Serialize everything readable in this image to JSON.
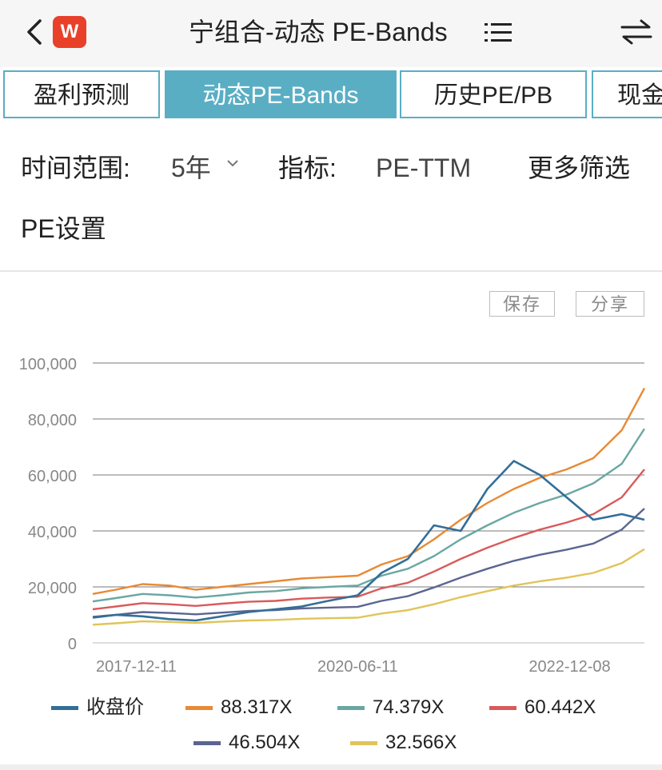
{
  "header": {
    "title": "宁组合-动态 PE-Bands",
    "logo_text": "W",
    "icons": {
      "back": "chevron-left-icon",
      "logo": "wind-logo-icon",
      "menu": "list-icon",
      "swap": "swap-arrows-icon"
    }
  },
  "tabs": [
    {
      "label": "盈利预测"
    },
    {
      "label": "动态PE-Bands"
    },
    {
      "label": "历史PE/PB"
    },
    {
      "label": "现金"
    }
  ],
  "filters": {
    "range_label": "时间范围:",
    "range_value": "5年",
    "metric_label": "指标:",
    "metric_value": "PE-TTM",
    "more_label": "更多筛选",
    "pe_settings_label": "PE设置"
  },
  "actions": {
    "save_label": "保存",
    "share_label": "分享"
  },
  "colors": {
    "tab_accent": "#5aaec4",
    "close": "#336e98",
    "band_88": "#e88a35",
    "band_74": "#6aa7a2",
    "band_60": "#d95a5a",
    "band_46": "#5b6590",
    "band_32": "#e0c45a"
  },
  "chart_data": {
    "type": "line",
    "title": "",
    "xlabel": "",
    "ylabel": "",
    "ylim": [
      0,
      100000
    ],
    "yticks": [
      "100,000",
      "80,000",
      "60,000",
      "40,000",
      "20,000",
      "0"
    ],
    "ytick_values": [
      100000,
      80000,
      60000,
      40000,
      20000,
      0
    ],
    "xticks": [
      "2017-12-11",
      "2020-06-11",
      "2022-12-08"
    ],
    "xlim": [
      "2017-12-11",
      "2023-02-24"
    ],
    "x": [
      "2017-12-11",
      "2018-03-01",
      "2018-06-01",
      "2018-09-01",
      "2018-12-01",
      "2019-03-01",
      "2019-06-01",
      "2019-09-01",
      "2019-12-01",
      "2020-03-01",
      "2020-06-11",
      "2020-09-01",
      "2020-12-01",
      "2021-03-01",
      "2021-06-01",
      "2021-09-01",
      "2021-12-01",
      "2022-03-01",
      "2022-06-01",
      "2022-09-01",
      "2022-12-08",
      "2023-02-24"
    ],
    "grid": true,
    "legend_position": "bottom",
    "series": [
      {
        "name": "收盘价",
        "color": "#336e98",
        "values": [
          9000,
          10000,
          9500,
          8500,
          8000,
          9500,
          11000,
          12000,
          13000,
          15000,
          17000,
          25000,
          30000,
          42000,
          40000,
          55000,
          65000,
          60000,
          52000,
          44000,
          46000,
          44000
        ]
      },
      {
        "name": "88.317X",
        "color": "#e88a35",
        "values": [
          17500,
          19000,
          21000,
          20500,
          19000,
          20000,
          21000,
          22000,
          23000,
          23500,
          24000,
          28000,
          31000,
          37000,
          44000,
          50000,
          55000,
          59000,
          62000,
          66000,
          76000,
          91000
        ]
      },
      {
        "name": "74.379X",
        "color": "#6aa7a2",
        "values": [
          14800,
          16000,
          17500,
          17000,
          16200,
          17000,
          18000,
          18500,
          19500,
          20000,
          20500,
          24000,
          26500,
          31000,
          37000,
          42000,
          46500,
          50000,
          53000,
          57000,
          64000,
          76500
        ]
      },
      {
        "name": "60.442X",
        "color": "#d95a5a",
        "values": [
          12000,
          13000,
          14200,
          13800,
          13200,
          14000,
          14700,
          15000,
          15800,
          16200,
          16500,
          19500,
          21500,
          25500,
          30000,
          34000,
          37500,
          40500,
          43000,
          46000,
          52000,
          62000
        ]
      },
      {
        "name": "46.504X",
        "color": "#5b6590",
        "values": [
          9300,
          10000,
          11000,
          10700,
          10200,
          10800,
          11400,
          11700,
          12300,
          12600,
          12900,
          15000,
          16700,
          19800,
          23300,
          26500,
          29300,
          31500,
          33300,
          35500,
          40500,
          48000
        ]
      },
      {
        "name": "32.566X",
        "color": "#e0c45a",
        "values": [
          6500,
          7000,
          7700,
          7500,
          7100,
          7600,
          8000,
          8200,
          8600,
          8800,
          9000,
          10500,
          11700,
          13800,
          16300,
          18500,
          20500,
          22000,
          23300,
          25000,
          28500,
          33500
        ]
      }
    ]
  }
}
